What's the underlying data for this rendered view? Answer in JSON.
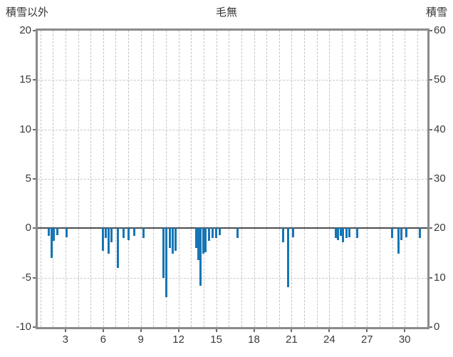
{
  "header": {
    "left_axis_title": "積雪以外",
    "chart_title": "毛無",
    "right_axis_title": "積雪"
  },
  "chart_data": {
    "type": "bar",
    "title": "毛無",
    "left_axis": {
      "label": "積雪以外",
      "ticks": [
        20,
        15,
        10,
        5,
        0,
        -5,
        -10
      ],
      "range": [
        -10,
        20
      ]
    },
    "right_axis": {
      "label": "積雪",
      "ticks": [
        60,
        50,
        40,
        30,
        20,
        10,
        0
      ],
      "range": [
        0,
        60
      ]
    },
    "x_axis": {
      "ticks": [
        3,
        6,
        9,
        12,
        15,
        18,
        21,
        24,
        27,
        30
      ],
      "range": [
        0.8,
        31.8
      ],
      "gridline_step_days": 1
    },
    "grid": true,
    "legend": "none",
    "bar_color": "#1776b6",
    "zero_line_color": "#4d4d4d",
    "frame_color": "#8a8a8a",
    "bar_width_days": 0.17,
    "bars": [
      [
        1.7,
        -0.8
      ],
      [
        1.9,
        -3.0
      ],
      [
        2.1,
        -1.3
      ],
      [
        2.35,
        -0.7
      ],
      [
        3.1,
        -0.9
      ],
      [
        6.0,
        -2.3
      ],
      [
        6.2,
        -1.0
      ],
      [
        6.45,
        -2.6
      ],
      [
        6.65,
        -1.4
      ],
      [
        7.2,
        -4.0
      ],
      [
        7.6,
        -1.0
      ],
      [
        8.0,
        -1.2
      ],
      [
        8.5,
        -0.8
      ],
      [
        9.2,
        -1.0
      ],
      [
        10.8,
        -5.0
      ],
      [
        11.0,
        -7.0
      ],
      [
        11.3,
        -2.0
      ],
      [
        11.55,
        -2.6
      ],
      [
        11.75,
        -2.3
      ],
      [
        13.4,
        -2.0
      ],
      [
        13.55,
        -3.2
      ],
      [
        13.75,
        -5.8
      ],
      [
        13.95,
        -2.6
      ],
      [
        14.15,
        -2.4
      ],
      [
        14.4,
        -1.3
      ],
      [
        14.7,
        -1.0
      ],
      [
        15.0,
        -1.0
      ],
      [
        15.3,
        -0.7
      ],
      [
        16.7,
        -1.0
      ],
      [
        20.3,
        -1.4
      ],
      [
        20.7,
        -6.0
      ],
      [
        21.1,
        -0.9
      ],
      [
        24.5,
        -1.0
      ],
      [
        24.7,
        -1.2
      ],
      [
        24.9,
        -0.8
      ],
      [
        25.1,
        -1.4
      ],
      [
        25.35,
        -1.0
      ],
      [
        25.6,
        -0.9
      ],
      [
        26.2,
        -1.0
      ],
      [
        29.0,
        -1.0
      ],
      [
        29.5,
        -2.6
      ],
      [
        29.75,
        -1.2
      ],
      [
        30.1,
        -0.9
      ],
      [
        31.2,
        -1.0
      ]
    ]
  }
}
